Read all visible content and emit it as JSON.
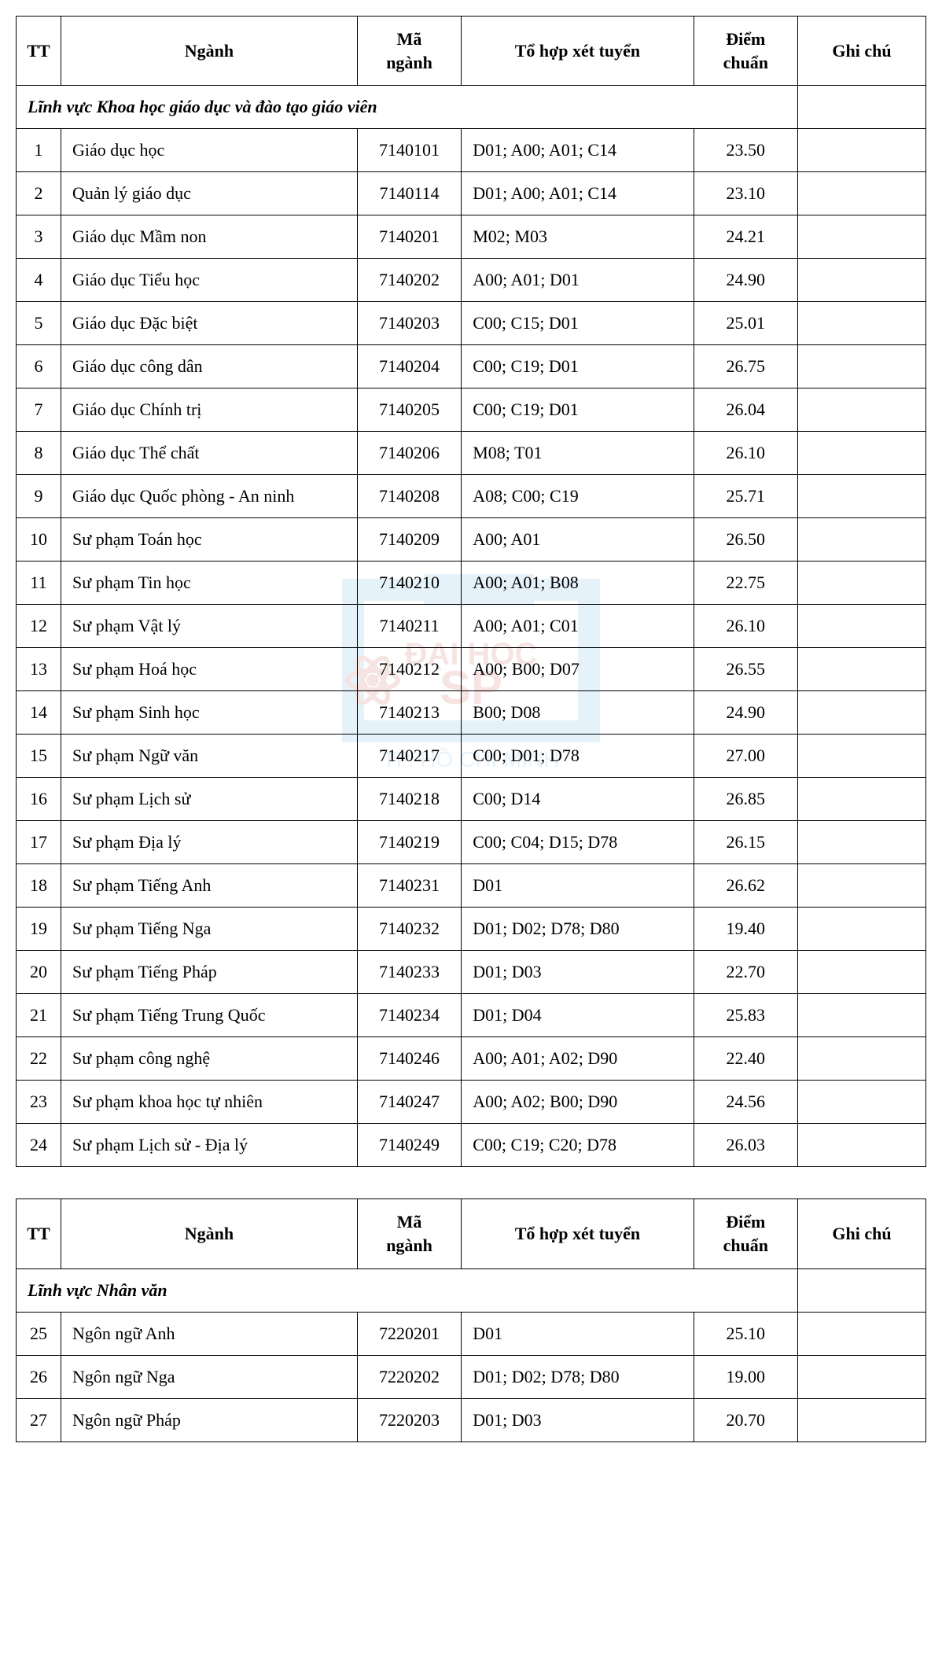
{
  "headers": {
    "tt": "TT",
    "nganh": "Ngành",
    "ma": "Mã ngành",
    "tohop": "Tổ hợp xét tuyển",
    "diem": "Điểm chuẩn",
    "ghi": "Ghi chú"
  },
  "tables": [
    {
      "section": "Lĩnh vực Khoa học giáo dục và đào tạo giáo viên",
      "rows": [
        {
          "tt": "1",
          "nganh": "Giáo dục học",
          "ma": "7140101",
          "th": "D01; A00; A01; C14",
          "diem": "23.50",
          "ghi": ""
        },
        {
          "tt": "2",
          "nganh": "Quản lý giáo dục",
          "ma": "7140114",
          "th": "D01; A00; A01; C14",
          "diem": "23.10",
          "ghi": ""
        },
        {
          "tt": "3",
          "nganh": "Giáo dục Mầm non",
          "ma": "7140201",
          "th": "M02; M03",
          "diem": "24.21",
          "ghi": ""
        },
        {
          "tt": "4",
          "nganh": "Giáo dục Tiểu học",
          "ma": "7140202",
          "th": "A00; A01; D01",
          "diem": "24.90",
          "ghi": ""
        },
        {
          "tt": "5",
          "nganh": "Giáo dục Đặc biệt",
          "ma": "7140203",
          "th": "C00; C15; D01",
          "diem": "25.01",
          "ghi": ""
        },
        {
          "tt": "6",
          "nganh": "Giáo dục công dân",
          "ma": "7140204",
          "th": "C00; C19; D01",
          "diem": "26.75",
          "ghi": ""
        },
        {
          "tt": "7",
          "nganh": "Giáo dục Chính trị",
          "ma": "7140205",
          "th": "C00; C19; D01",
          "diem": "26.04",
          "ghi": ""
        },
        {
          "tt": "8",
          "nganh": "Giáo dục Thể chất",
          "ma": "7140206",
          "th": "M08; T01",
          "diem": "26.10",
          "ghi": ""
        },
        {
          "tt": "9",
          "nganh": "Giáo dục Quốc phòng - An ninh",
          "ma": "7140208",
          "th": "A08; C00; C19",
          "diem": "25.71",
          "ghi": ""
        },
        {
          "tt": "10",
          "nganh": "Sư phạm Toán học",
          "ma": "7140209",
          "th": "A00; A01",
          "diem": "26.50",
          "ghi": ""
        },
        {
          "tt": "11",
          "nganh": "Sư phạm Tin học",
          "ma": "7140210",
          "th": "A00; A01; B08",
          "diem": "22.75",
          "ghi": ""
        },
        {
          "tt": "12",
          "nganh": "Sư phạm Vật lý",
          "ma": "7140211",
          "th": "A00; A01; C01",
          "diem": "26.10",
          "ghi": ""
        },
        {
          "tt": "13",
          "nganh": "Sư phạm Hoá học",
          "ma": "7140212",
          "th": "A00; B00; D07",
          "diem": "26.55",
          "ghi": ""
        },
        {
          "tt": "14",
          "nganh": "Sư phạm Sinh học",
          "ma": "7140213",
          "th": "B00; D08",
          "diem": "24.90",
          "ghi": ""
        },
        {
          "tt": "15",
          "nganh": "Sư phạm Ngữ văn",
          "ma": "7140217",
          "th": "C00; D01; D78",
          "diem": "27.00",
          "ghi": ""
        },
        {
          "tt": "16",
          "nganh": "Sư phạm Lịch sử",
          "ma": "7140218",
          "th": "C00; D14",
          "diem": "26.85",
          "ghi": ""
        },
        {
          "tt": "17",
          "nganh": "Sư phạm Địa lý",
          "ma": "7140219",
          "th": "C00; C04; D15; D78",
          "diem": "26.15",
          "ghi": ""
        },
        {
          "tt": "18",
          "nganh": "Sư phạm Tiếng Anh",
          "ma": "7140231",
          "th": "D01",
          "diem": "26.62",
          "ghi": ""
        },
        {
          "tt": "19",
          "nganh": "Sư phạm Tiếng Nga",
          "ma": "7140232",
          "th": "D01; D02; D78; D80",
          "diem": "19.40",
          "ghi": ""
        },
        {
          "tt": "20",
          "nganh": "Sư phạm Tiếng Pháp",
          "ma": "7140233",
          "th": "D01; D03",
          "diem": "22.70",
          "ghi": ""
        },
        {
          "tt": "21",
          "nganh": "Sư phạm Tiếng Trung Quốc",
          "ma": "7140234",
          "th": "D01; D04",
          "diem": "25.83",
          "ghi": ""
        },
        {
          "tt": "22",
          "nganh": "Sư phạm công nghệ",
          "ma": "7140246",
          "th": "A00; A01; A02; D90",
          "diem": "22.40",
          "ghi": ""
        },
        {
          "tt": "23",
          "nganh": "Sư phạm khoa học tự nhiên",
          "ma": "7140247",
          "th": "A00; A02; B00; D90",
          "diem": "24.56",
          "ghi": ""
        },
        {
          "tt": "24",
          "nganh": "Sư phạm Lịch sử - Địa lý",
          "ma": "7140249",
          "th": "C00; C19; C20; D78",
          "diem": "26.03",
          "ghi": ""
        }
      ]
    },
    {
      "section": "Lĩnh vực Nhân văn",
      "rows": [
        {
          "tt": "25",
          "nganh": "Ngôn ngữ Anh",
          "ma": "7220201",
          "th": "D01",
          "diem": "25.10",
          "ghi": ""
        },
        {
          "tt": "26",
          "nganh": "Ngôn ngữ Nga",
          "ma": "7220202",
          "th": "D01; D02; D78; D80",
          "diem": "19.00",
          "ghi": ""
        },
        {
          "tt": "27",
          "nganh": "Ngôn ngữ Pháp",
          "ma": "7220203",
          "th": "D01; D03",
          "diem": "20.70",
          "ghi": ""
        }
      ]
    }
  ],
  "style": {
    "font_family": "Times New Roman",
    "font_size_pt": 16,
    "border_color": "#000000",
    "background_color": "#ffffff",
    "text_color": "#000000"
  }
}
